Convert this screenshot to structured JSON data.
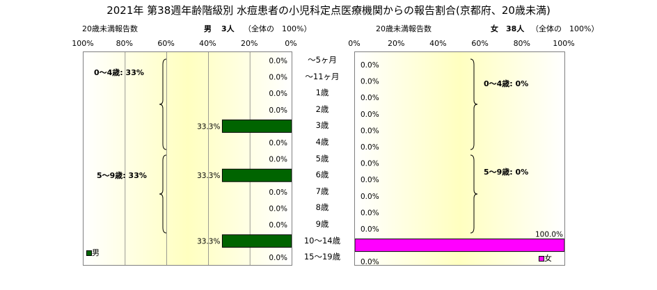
{
  "title": "2021年 第38週年齢階級別 水痘患者の小児科定点医療機関からの報告割合(京都府、20歳未満)",
  "colors": {
    "male": "#006400",
    "female": "#ff00ff",
    "plot_bg_start": "#fffde0",
    "plot_bg_mid": "#ffffc0"
  },
  "chart_data": [
    {
      "type": "bar",
      "orientation": "horizontal",
      "direction": "right-to-left",
      "side": "left",
      "axis_title": "20歳未満報告数",
      "header": {
        "sex": "男",
        "count": "3人",
        "pct": "（全体の　100%）"
      },
      "legend": "男",
      "xlim": [
        0,
        100
      ],
      "ticks": [
        "100%",
        "80%",
        "60%",
        "40%",
        "20%",
        "0%"
      ],
      "categories": [
        "～5ヶ月",
        "～11ヶ月",
        "1歳",
        "2歳",
        "3歳",
        "4歳",
        "5歳",
        "6歳",
        "7歳",
        "8歳",
        "9歳",
        "10～14歳",
        "15～19歳"
      ],
      "values": [
        0,
        0,
        0,
        0,
        33.3,
        0,
        0,
        33.3,
        0,
        0,
        0,
        33.3,
        0
      ],
      "value_labels": [
        "0.0%",
        "0.0%",
        "0.0%",
        "0.0%",
        "33.3%",
        "0.0%",
        "0.0%",
        "33.3%",
        "0.0%",
        "0.0%",
        "0.0%",
        "33.3%",
        "0.0%"
      ],
      "groups": [
        {
          "label": "0～4歳: 33%"
        },
        {
          "label": "5～9歳: 33%"
        }
      ],
      "grid": true
    },
    {
      "type": "bar",
      "orientation": "horizontal",
      "direction": "left-to-right",
      "side": "right",
      "axis_title": "20歳未満報告数",
      "header": {
        "sex": "女",
        "count": "38人",
        "pct": "（全体の　100%）"
      },
      "legend": "女",
      "xlim": [
        0,
        100
      ],
      "ticks": [
        "0%",
        "20%",
        "40%",
        "60%",
        "80%",
        "100%"
      ],
      "categories": [
        "～5ヶ月",
        "～11ヶ月",
        "1歳",
        "2歳",
        "3歳",
        "4歳",
        "5歳",
        "6歳",
        "7歳",
        "8歳",
        "9歳",
        "10～14歳",
        "15～19歳"
      ],
      "values": [
        0,
        0,
        0,
        0,
        0,
        0,
        0,
        0,
        0,
        0,
        0,
        100,
        0
      ],
      "value_labels": [
        "0.0%",
        "0.0%",
        "0.0%",
        "0.0%",
        "0.0%",
        "0.0%",
        "0.0%",
        "0.0%",
        "0.0%",
        "0.0%",
        "0.0%",
        "100.0%",
        "0.0%"
      ],
      "groups": [
        {
          "label": "0～4歳: 0%"
        },
        {
          "label": "5～9歳: 0%"
        }
      ],
      "grid": false
    }
  ]
}
